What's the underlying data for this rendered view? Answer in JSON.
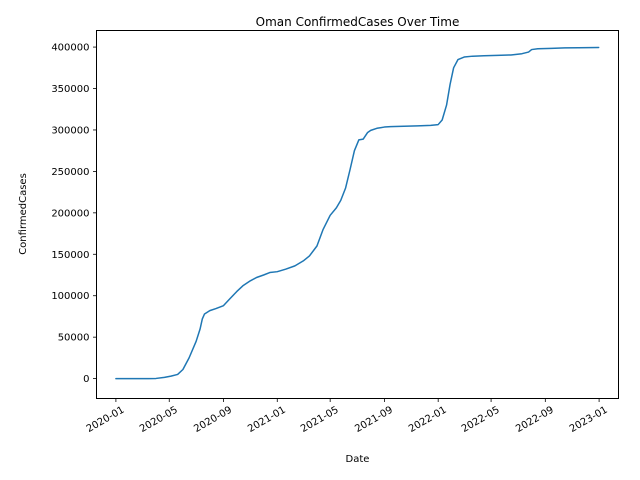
{
  "chart_data": {
    "type": "line",
    "title": "Oman  ConfirmedCases Over Time",
    "xlabel": "Date",
    "ylabel": "ConfirmedCases",
    "xlim": [
      "2019-11-18",
      "2023-02-14"
    ],
    "ylim": [
      -24000,
      420000
    ],
    "x_ticks": [
      "2020-01",
      "2020-05",
      "2020-09",
      "2021-01",
      "2021-05",
      "2021-09",
      "2022-01",
      "2022-05",
      "2022-09",
      "2023-01"
    ],
    "y_ticks": [
      0,
      50000,
      100000,
      150000,
      200000,
      250000,
      300000,
      350000,
      400000
    ],
    "grid": false,
    "series": [
      {
        "color": "#1f77b4",
        "x": [
          "2020-01-01",
          "2020-02-24",
          "2020-03-15",
          "2020-04-01",
          "2020-04-20",
          "2020-05-05",
          "2020-05-20",
          "2020-06-01",
          "2020-06-15",
          "2020-07-01",
          "2020-07-10",
          "2020-07-15",
          "2020-07-20",
          "2020-08-01",
          "2020-08-15",
          "2020-09-01",
          "2020-09-15",
          "2020-10-01",
          "2020-10-15",
          "2020-11-01",
          "2020-11-15",
          "2020-12-01",
          "2020-12-15",
          "2021-01-01",
          "2021-01-20",
          "2021-02-10",
          "2021-03-01",
          "2021-03-15",
          "2021-04-01",
          "2021-04-15",
          "2021-05-01",
          "2021-05-15",
          "2021-05-25",
          "2021-06-05",
          "2021-06-15",
          "2021-06-25",
          "2021-07-05",
          "2021-07-15",
          "2021-07-25",
          "2021-08-01",
          "2021-08-15",
          "2021-09-01",
          "2021-09-15",
          "2021-10-15",
          "2021-11-15",
          "2021-12-15",
          "2022-01-01",
          "2022-01-10",
          "2022-01-20",
          "2022-01-28",
          "2022-02-05",
          "2022-02-15",
          "2022-03-01",
          "2022-03-20",
          "2022-04-15",
          "2022-05-15",
          "2022-06-15",
          "2022-07-10",
          "2022-07-25",
          "2022-08-01",
          "2022-08-15",
          "2022-09-15",
          "2022-10-15",
          "2022-11-15",
          "2022-12-31"
        ],
        "values": [
          0,
          10,
          50,
          200,
          1500,
          3000,
          5000,
          11000,
          25000,
          45000,
          60000,
          72000,
          78000,
          82000,
          84500,
          88000,
          96000,
          105000,
          112000,
          118000,
          122000,
          125000,
          128000,
          129000,
          132000,
          136000,
          142000,
          148000,
          160000,
          180000,
          197000,
          206000,
          215000,
          230000,
          252000,
          275000,
          288000,
          289000,
          297000,
          299500,
          302000,
          303500,
          304000,
          304500,
          305000,
          305500,
          306500,
          312000,
          330000,
          355000,
          375000,
          385000,
          388000,
          389000,
          389500,
          390000,
          390500,
          392000,
          394000,
          397000,
          398000,
          398500,
          399000,
          399200,
          399500
        ]
      }
    ]
  }
}
